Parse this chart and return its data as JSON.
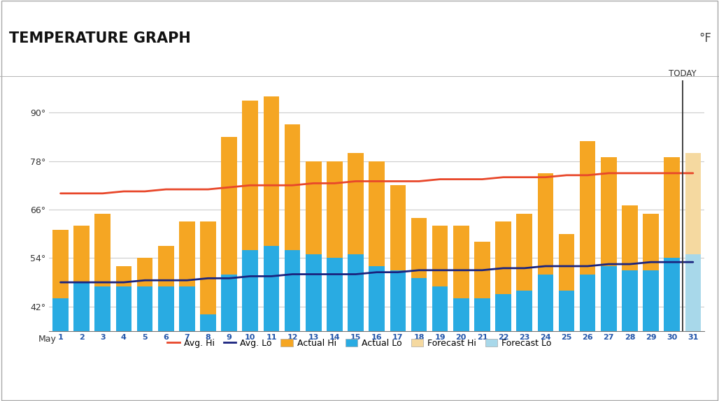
{
  "title": "TEMPERATURE GRAPH",
  "unit": "°F",
  "days": [
    1,
    2,
    3,
    4,
    5,
    6,
    7,
    8,
    9,
    10,
    11,
    12,
    13,
    14,
    15,
    16,
    17,
    18,
    19,
    20,
    21,
    22,
    23,
    24,
    25,
    26,
    27,
    28,
    29,
    30,
    31
  ],
  "actual_hi": [
    61,
    62,
    65,
    52,
    54,
    57,
    63,
    63,
    84,
    93,
    94,
    87,
    78,
    78,
    80,
    78,
    72,
    64,
    62,
    62,
    58,
    63,
    65,
    75,
    60,
    83,
    79,
    67,
    65,
    79,
    null
  ],
  "actual_lo": [
    44,
    48,
    47,
    47,
    47,
    47,
    47,
    40,
    50,
    56,
    57,
    56,
    55,
    54,
    55,
    52,
    51,
    49,
    47,
    44,
    44,
    45,
    46,
    50,
    46,
    50,
    52,
    51,
    51,
    54,
    null
  ],
  "forecast_hi": [
    null,
    null,
    null,
    null,
    null,
    null,
    null,
    null,
    null,
    null,
    null,
    null,
    null,
    null,
    null,
    null,
    null,
    null,
    null,
    null,
    null,
    null,
    null,
    null,
    null,
    null,
    null,
    null,
    null,
    null,
    80
  ],
  "forecast_lo": [
    null,
    null,
    null,
    null,
    null,
    null,
    null,
    null,
    null,
    null,
    null,
    null,
    null,
    null,
    null,
    null,
    null,
    null,
    null,
    null,
    null,
    null,
    null,
    null,
    null,
    null,
    null,
    null,
    null,
    null,
    55
  ],
  "avg_hi": [
    70,
    70,
    70,
    70.5,
    70.5,
    71,
    71,
    71,
    71.5,
    72,
    72,
    72,
    72.5,
    72.5,
    73,
    73,
    73,
    73,
    73.5,
    73.5,
    73.5,
    74,
    74,
    74,
    74.5,
    74.5,
    75,
    75,
    75,
    75,
    75
  ],
  "avg_lo": [
    48,
    48,
    48,
    48,
    48.5,
    48.5,
    48.5,
    49,
    49,
    49.5,
    49.5,
    50,
    50,
    50,
    50,
    50.5,
    50.5,
    51,
    51,
    51,
    51,
    51.5,
    51.5,
    52,
    52,
    52,
    52.5,
    52.5,
    53,
    53,
    53
  ],
  "today_index": 30,
  "ylim_min": 36,
  "ylim_max": 98,
  "yticks": [
    42,
    54,
    66,
    78,
    90
  ],
  "color_actual_hi": "#F5A623",
  "color_actual_lo": "#29ABE2",
  "color_forecast_hi": "#F5D9A0",
  "color_forecast_lo": "#A8D8EA",
  "color_avg_hi": "#E8472A",
  "color_avg_lo": "#1A237E",
  "color_bg": "#FFFFFF",
  "color_grid": "#CCCCCC",
  "bar_width": 0.75
}
